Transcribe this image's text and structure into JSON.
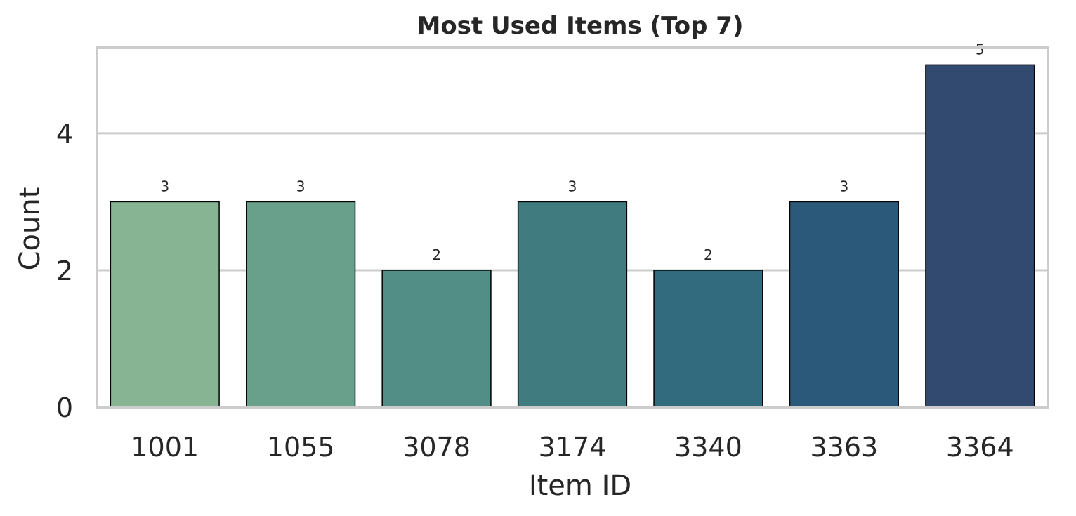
{
  "chart_data": {
    "type": "bar",
    "title": "Most Used Items (Top 7)",
    "xlabel": "Item ID",
    "ylabel": "Count",
    "categories": [
      "1001",
      "1055",
      "3078",
      "3174",
      "3340",
      "3363",
      "3364"
    ],
    "values": [
      3,
      3,
      2,
      3,
      2,
      3,
      5
    ],
    "ylim": [
      0,
      5.25
    ],
    "yticks": [
      0,
      2,
      4
    ],
    "grid": "horizontal",
    "colors": [
      "#87b493",
      "#69a08c",
      "#528e85",
      "#407b80",
      "#326b7e",
      "#2b5979",
      "#324a6f"
    ]
  }
}
